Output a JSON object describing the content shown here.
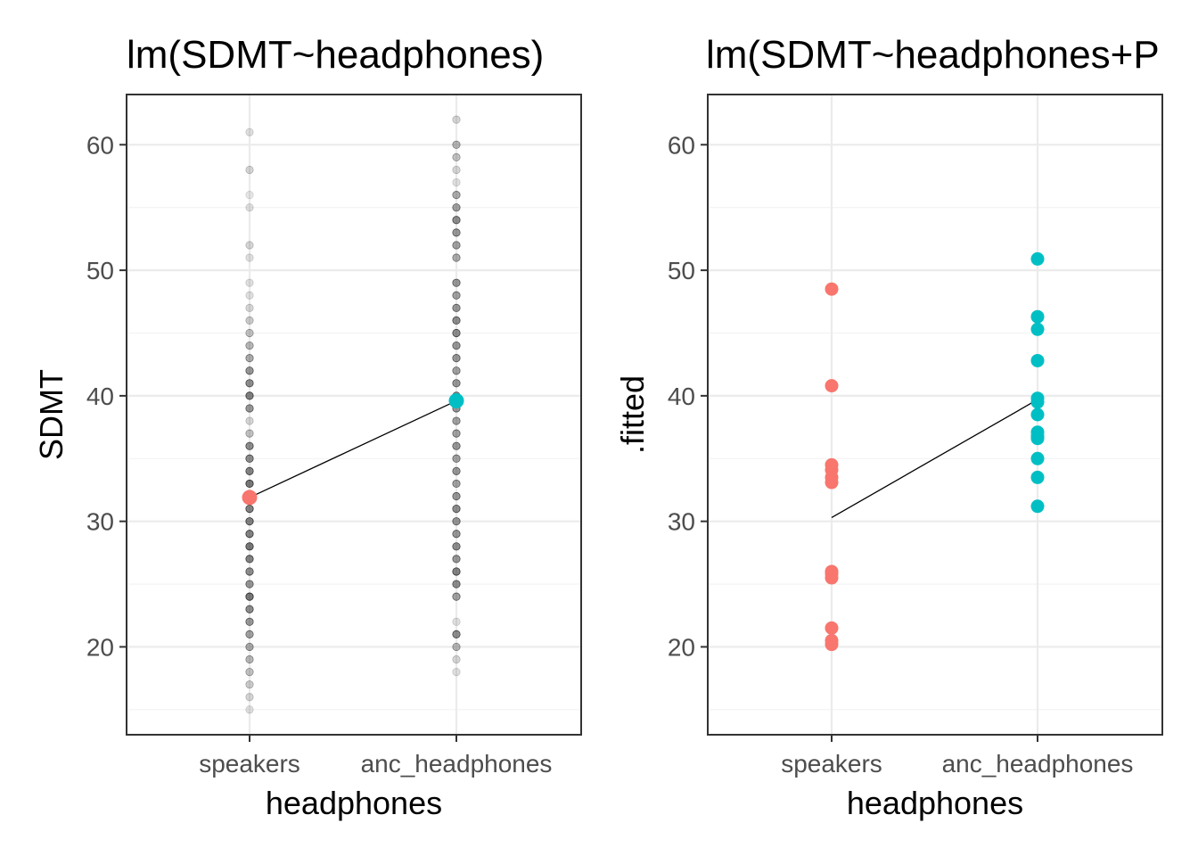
{
  "chart_data": [
    {
      "type": "scatter",
      "title": "lm(SDMT~headphones)",
      "xlabel": "headphones",
      "ylabel": "SDMT",
      "categories": [
        "speakers",
        "anc_headphones"
      ],
      "ylim": [
        13,
        64
      ],
      "yticks": [
        20,
        30,
        40,
        50,
        60
      ],
      "grid": true,
      "colors": {
        "speakers": "#F8766D",
        "anc_headphones": "#00BFC4",
        "raw": "#000000",
        "line": "#000000"
      },
      "raw_points": [
        {
          "x": "speakers",
          "values": [
            15,
            16,
            17,
            18,
            19,
            20,
            21,
            22,
            23,
            24,
            25,
            26,
            27,
            28,
            29,
            30,
            31,
            32,
            33,
            34,
            35,
            36,
            37,
            38,
            39,
            40,
            41,
            42,
            43,
            44,
            45,
            46,
            47,
            48,
            49,
            51,
            52,
            55,
            56,
            58,
            61
          ]
        },
        {
          "x": "anc_headphones",
          "values": [
            18,
            19,
            20,
            21,
            22,
            24,
            25,
            26,
            27,
            28,
            29,
            30,
            31,
            32,
            33,
            34,
            35,
            36,
            37,
            38,
            39,
            40,
            41,
            42,
            43,
            44,
            45,
            46,
            47,
            48,
            49,
            51,
            52,
            53,
            54,
            55,
            56,
            57,
            58,
            59,
            60,
            62
          ]
        }
      ],
      "raw_alpha": {
        "speakers": [
          0.15,
          0.2,
          0.25,
          0.3,
          0.35,
          0.4,
          0.45,
          0.5,
          0.55,
          0.65,
          0.5,
          0.55,
          0.6,
          0.65,
          0.6,
          0.6,
          0.6,
          0.55,
          0.65,
          0.6,
          0.55,
          0.55,
          0.3,
          0.2,
          0.5,
          0.6,
          0.55,
          0.5,
          0.4,
          0.35,
          0.3,
          0.25,
          0.2,
          0.15,
          0.15,
          0.15,
          0.2,
          0.15,
          0.12,
          0.2,
          0.15
        ],
        "anc_headphones": [
          0.15,
          0.2,
          0.35,
          0.55,
          0.15,
          0.45,
          0.55,
          0.6,
          0.5,
          0.55,
          0.5,
          0.5,
          0.55,
          0.5,
          0.45,
          0.5,
          0.45,
          0.5,
          0.45,
          0.45,
          0.5,
          0.5,
          0.5,
          0.45,
          0.5,
          0.5,
          0.55,
          0.55,
          0.5,
          0.45,
          0.5,
          0.4,
          0.45,
          0.5,
          0.55,
          0.45,
          0.4,
          0.15,
          0.2,
          0.3,
          0.35,
          0.2
        ]
      },
      "fitted": [
        {
          "x": "speakers",
          "value": 31.9
        },
        {
          "x": "anc_headphones",
          "value": 39.6
        }
      ]
    },
    {
      "type": "scatter",
      "title": "lm(SDMT~headphones+P",
      "xlabel": "headphones",
      "ylabel": ".fitted",
      "categories": [
        "speakers",
        "anc_headphones"
      ],
      "ylim": [
        13,
        64
      ],
      "yticks": [
        20,
        30,
        40,
        50,
        60
      ],
      "grid": true,
      "colors": {
        "speakers": "#F8766D",
        "anc_headphones": "#00BFC4",
        "line": "#000000"
      },
      "series": [
        {
          "x": "speakers",
          "values": [
            48.5,
            40.8,
            34.5,
            34.1,
            33.5,
            33.1,
            26.0,
            25.8,
            25.5,
            21.5,
            20.5,
            20.2
          ]
        },
        {
          "x": "anc_headphones",
          "values": [
            50.9,
            46.3,
            45.3,
            42.8,
            39.8,
            39.5,
            38.5,
            37.1,
            36.8,
            36.6,
            35.0,
            33.5,
            31.2
          ]
        }
      ],
      "line": [
        {
          "x": "speakers",
          "value": 30.3
        },
        {
          "x": "anc_headphones",
          "value": 39.7
        }
      ]
    }
  ]
}
